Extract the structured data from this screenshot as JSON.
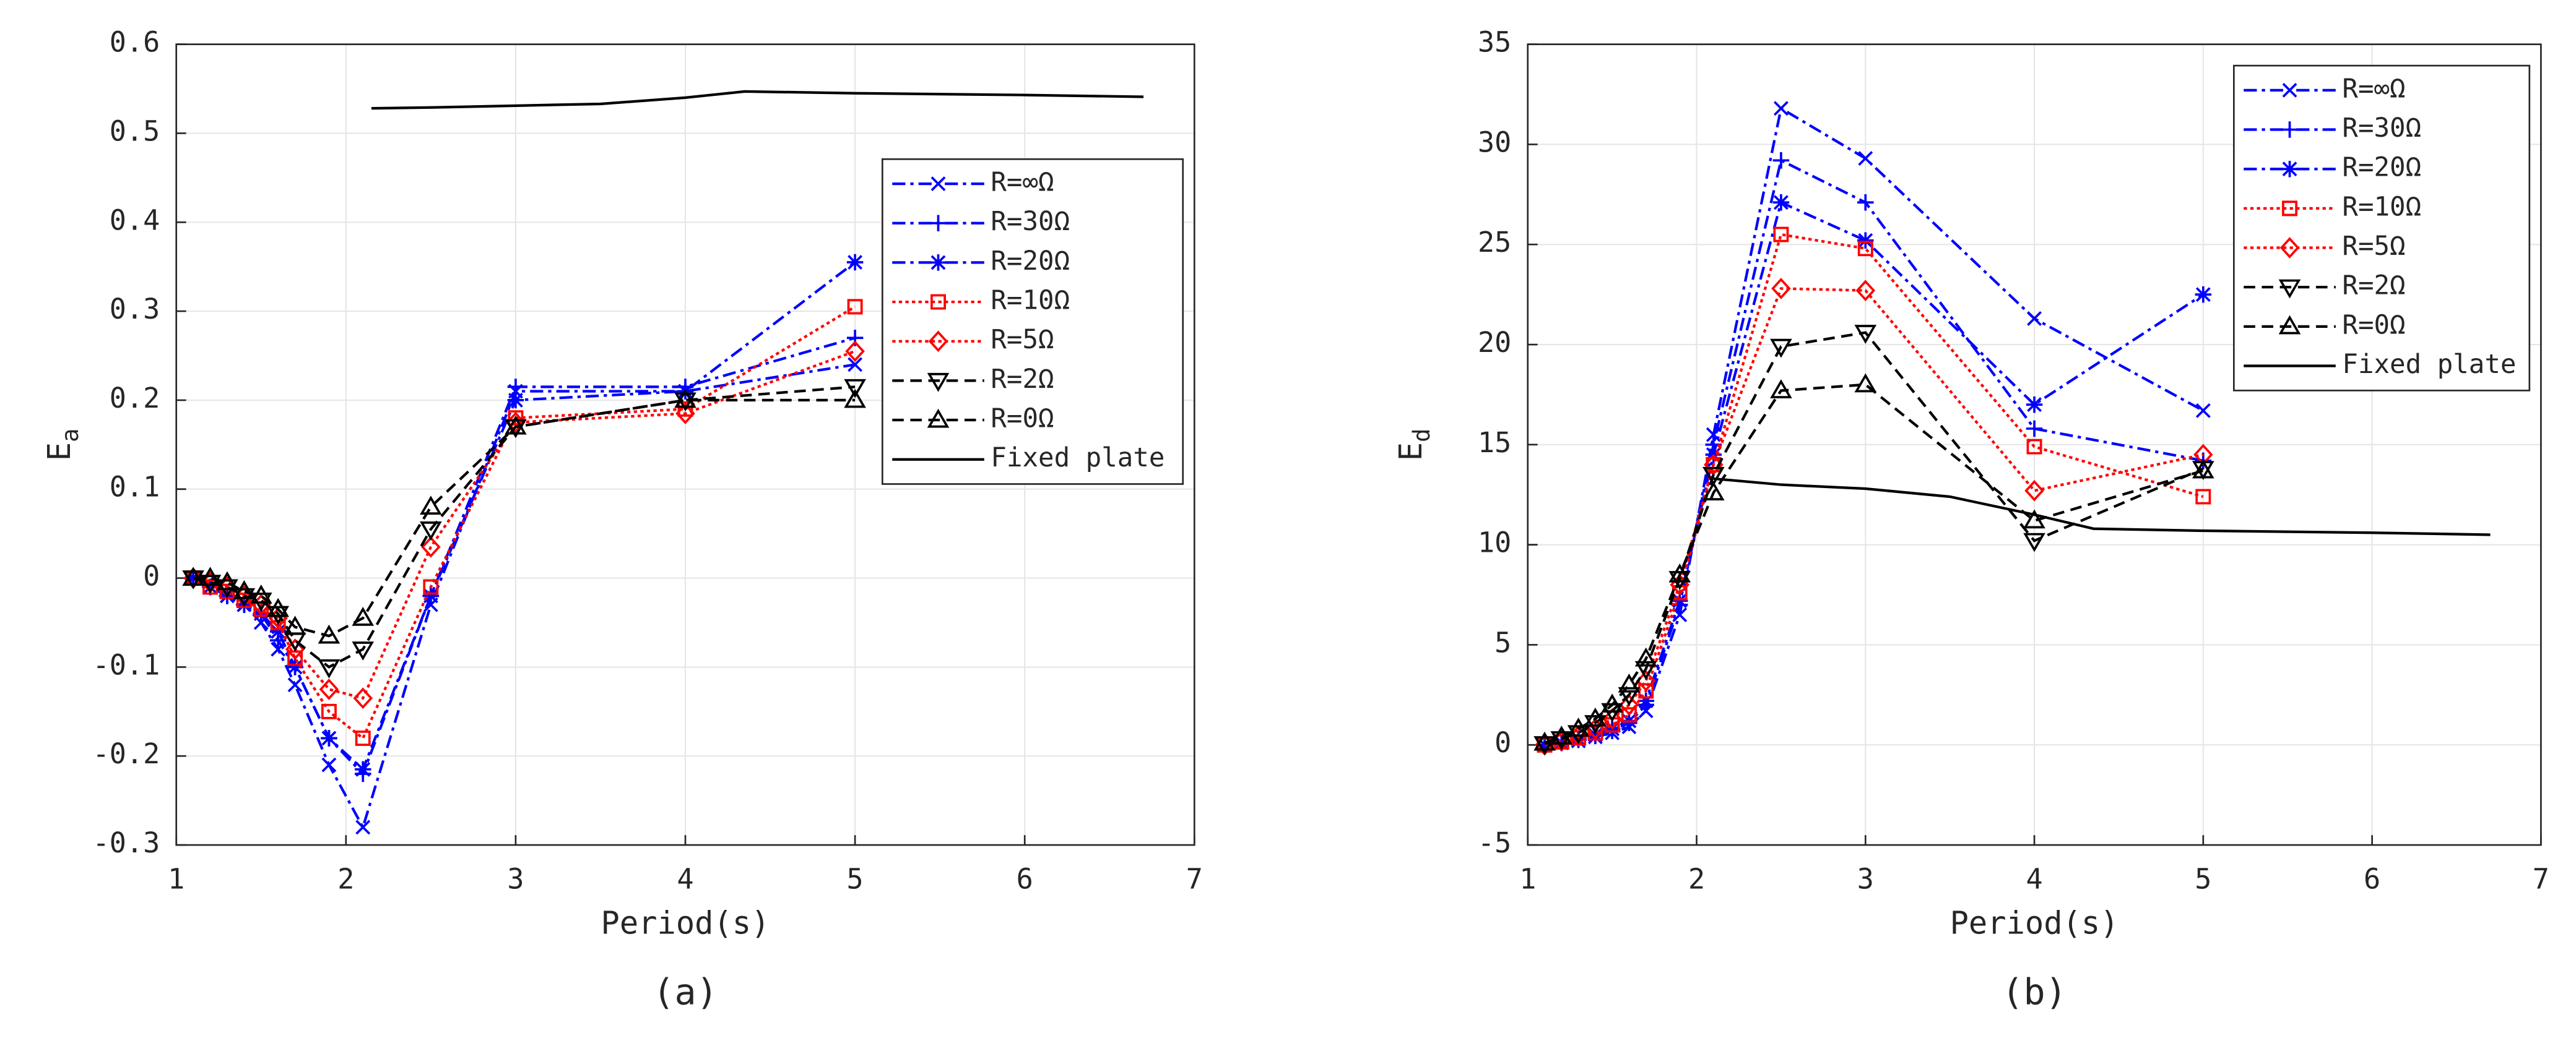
{
  "chart_data": [
    {
      "type": "line",
      "caption": "(a)",
      "xlabel": "Period(s)",
      "ylabel": "E",
      "ylabel_sub": "a",
      "xlim": [
        1,
        7
      ],
      "xticks": [
        1,
        2,
        3,
        4,
        5,
        6,
        7
      ],
      "ylim": [
        -0.3,
        0.6
      ],
      "yticks": [
        -0.3,
        -0.2,
        -0.1,
        0,
        0.1,
        0.2,
        0.3,
        0.4,
        0.5,
        0.6
      ],
      "grid": true,
      "legend": "northeast",
      "x": [
        1.1,
        1.2,
        1.3,
        1.4,
        1.5,
        1.6,
        1.7,
        1.9,
        2.1,
        2.5,
        3,
        4,
        5
      ],
      "series": [
        {
          "name": "R=∞Ω",
          "color": "#0000ff",
          "dash": "dashdot",
          "marker": "x",
          "values": [
            0,
            -0.01,
            -0.02,
            -0.03,
            -0.05,
            -0.08,
            -0.12,
            -0.21,
            -0.28,
            -0.03,
            0.21,
            0.21,
            0.24
          ]
        },
        {
          "name": "R=30Ω",
          "color": "#0000ff",
          "dash": "dashdot",
          "marker": "plus",
          "values": [
            0,
            -0.01,
            -0.02,
            -0.03,
            -0.04,
            -0.07,
            -0.1,
            -0.18,
            -0.22,
            -0.02,
            0.215,
            0.215,
            0.27
          ]
        },
        {
          "name": "R=20Ω",
          "color": "#0000ff",
          "dash": "dashdot",
          "marker": "star",
          "values": [
            0,
            -0.01,
            -0.02,
            -0.03,
            -0.04,
            -0.06,
            -0.1,
            -0.18,
            -0.215,
            -0.02,
            0.2,
            0.21,
            0.355
          ]
        },
        {
          "name": "R=10Ω",
          "color": "#ff0000",
          "dash": "dotted",
          "marker": "square",
          "values": [
            0,
            -0.01,
            -0.015,
            -0.025,
            -0.035,
            -0.05,
            -0.09,
            -0.15,
            -0.18,
            -0.01,
            0.18,
            0.19,
            0.305
          ]
        },
        {
          "name": "R=5Ω",
          "color": "#ff0000",
          "dash": "dotted",
          "marker": "diamond",
          "values": [
            0,
            -0.005,
            -0.01,
            -0.02,
            -0.03,
            -0.045,
            -0.08,
            -0.125,
            -0.135,
            0.035,
            0.175,
            0.185,
            0.255
          ]
        },
        {
          "name": "R=2Ω",
          "color": "#000000",
          "dash": "dashed",
          "marker": "tri-down",
          "values": [
            0,
            -0.005,
            -0.01,
            -0.02,
            -0.025,
            -0.04,
            -0.07,
            -0.1,
            -0.08,
            0.055,
            0.17,
            0.2,
            0.215
          ]
        },
        {
          "name": "R=0Ω",
          "color": "#000000",
          "dash": "dashed",
          "marker": "tri-up",
          "values": [
            0,
            0,
            -0.005,
            -0.015,
            -0.02,
            -0.035,
            -0.055,
            -0.065,
            -0.045,
            0.08,
            0.17,
            0.2,
            0.2
          ]
        },
        {
          "name": "Fixed plate",
          "color": "#000000",
          "dash": "solid",
          "marker": "none",
          "x": [
            2.15,
            2.5,
            3,
            3.5,
            4,
            4.35,
            5,
            6,
            6.7
          ],
          "values": [
            0.528,
            0.529,
            0.531,
            0.533,
            0.54,
            0.547,
            0.545,
            0.543,
            0.541
          ]
        }
      ]
    },
    {
      "type": "line",
      "caption": "(b)",
      "xlabel": "Period(s)",
      "ylabel": "E",
      "ylabel_sub": "d",
      "xlim": [
        1,
        7
      ],
      "xticks": [
        1,
        2,
        3,
        4,
        5,
        6,
        7
      ],
      "ylim": [
        -5,
        35
      ],
      "yticks": [
        -5,
        0,
        5,
        10,
        15,
        20,
        25,
        30,
        35
      ],
      "grid": true,
      "legend": "northeast",
      "x": [
        1.1,
        1.2,
        1.3,
        1.4,
        1.5,
        1.6,
        1.7,
        1.9,
        2.1,
        2.5,
        3,
        4,
        5
      ],
      "series": [
        {
          "name": "R=∞Ω",
          "color": "#0000ff",
          "dash": "dashdot",
          "marker": "x",
          "values": [
            0,
            0.1,
            0.2,
            0.4,
            0.6,
            0.9,
            1.7,
            6.5,
            15.5,
            31.8,
            29.3,
            21.3,
            16.7
          ]
        },
        {
          "name": "R=30Ω",
          "color": "#0000ff",
          "dash": "dashdot",
          "marker": "plus",
          "values": [
            0,
            0.1,
            0.25,
            0.45,
            0.7,
            1.1,
            2,
            7,
            15,
            29.2,
            27.1,
            15.8,
            14.2
          ]
        },
        {
          "name": "R=20Ω",
          "color": "#0000ff",
          "dash": "dashdot",
          "marker": "star",
          "values": [
            0,
            0.1,
            0.3,
            0.5,
            0.8,
            1.2,
            2.2,
            7.2,
            14.5,
            27.1,
            25.2,
            17,
            22.5
          ]
        },
        {
          "name": "R=10Ω",
          "color": "#ff0000",
          "dash": "dotted",
          "marker": "square",
          "values": [
            0,
            0.15,
            0.35,
            0.6,
            1,
            1.5,
            2.7,
            7.6,
            14,
            25.5,
            24.8,
            14.9,
            12.4
          ]
        },
        {
          "name": "R=5Ω",
          "color": "#ff0000",
          "dash": "dotted",
          "marker": "diamond",
          "values": [
            0,
            0.2,
            0.45,
            0.8,
            1.3,
            2,
            3.2,
            8,
            14,
            22.8,
            22.7,
            12.7,
            14.5
          ]
        },
        {
          "name": "R=2Ω",
          "color": "#000000",
          "dash": "dashed",
          "marker": "tri-down",
          "values": [
            0.05,
            0.3,
            0.6,
            1.1,
            1.7,
            2.5,
            3.8,
            8.3,
            13.5,
            19.9,
            20.6,
            10.2,
            13.8
          ]
        },
        {
          "name": "R=0Ω",
          "color": "#000000",
          "dash": "dashed",
          "marker": "tri-up",
          "values": [
            0.1,
            0.4,
            0.8,
            1.3,
            2,
            3,
            4.3,
            8.5,
            12.6,
            17.7,
            18,
            11.2,
            13.7
          ]
        },
        {
          "name": "Fixed plate",
          "color": "#000000",
          "dash": "solid",
          "marker": "none",
          "x": [
            2.1,
            2.5,
            3,
            3.5,
            4,
            4.35,
            5,
            6,
            6.7
          ],
          "values": [
            13.3,
            13,
            12.8,
            12.4,
            11.5,
            10.8,
            10.7,
            10.6,
            10.5
          ]
        }
      ]
    }
  ]
}
